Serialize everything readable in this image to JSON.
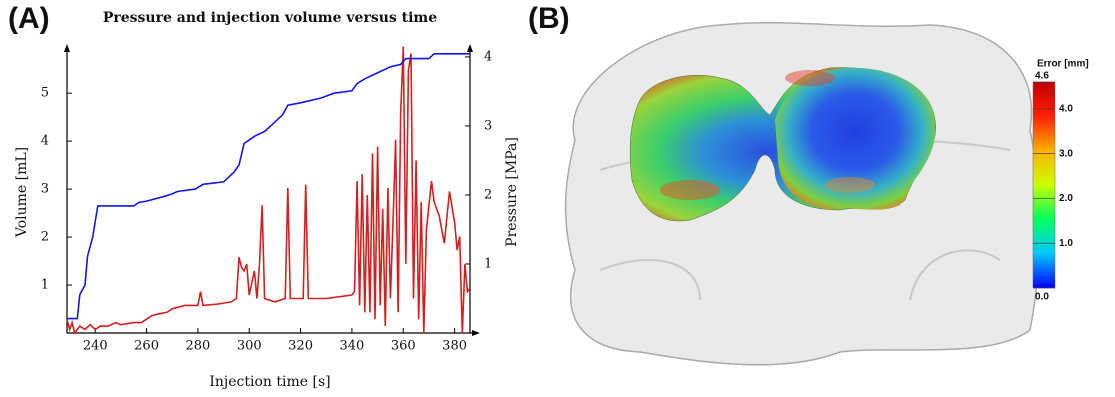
{
  "chart_data": [
    {
      "type": "line",
      "panel_label": "(A)",
      "title": "Pressure and injection volume versus time",
      "x_label": "Injection time [s]",
      "y_label": "Volume [mL]",
      "y2_label": "Pressure [MPa]",
      "xlim": [
        229,
        386
      ],
      "xticks": [
        240,
        260,
        280,
        300,
        320,
        340,
        360,
        380
      ],
      "ylim": [
        0,
        5.9
      ],
      "yticks": [
        1,
        2,
        3,
        4,
        5
      ],
      "y2lim": [
        0,
        4.1
      ],
      "y2ticks": [
        1,
        2,
        3,
        4
      ],
      "series": [
        {
          "color": "#1515f0",
          "axis": "y",
          "x": [
            229,
            233,
            234,
            236,
            237,
            239,
            241,
            255,
            257,
            260,
            267,
            270,
            272,
            279,
            282,
            290,
            294,
            296,
            298,
            302,
            306,
            309,
            313,
            315,
            320,
            328,
            333,
            340,
            342,
            345,
            349,
            351,
            353,
            355,
            359,
            361,
            370,
            372,
            386
          ],
          "values": [
            0.3,
            0.3,
            0.8,
            1.0,
            1.6,
            2.0,
            2.65,
            2.65,
            2.72,
            2.75,
            2.85,
            2.9,
            2.95,
            3.0,
            3.1,
            3.15,
            3.35,
            3.5,
            3.95,
            4.1,
            4.2,
            4.35,
            4.55,
            4.75,
            4.8,
            4.9,
            5.0,
            5.05,
            5.2,
            5.3,
            5.4,
            5.45,
            5.5,
            5.55,
            5.6,
            5.72,
            5.72,
            5.82,
            5.82
          ]
        },
        {
          "color": "#d42020",
          "axis": "y2",
          "x": [
            229,
            230,
            231,
            232,
            234,
            236,
            238,
            240,
            242,
            245,
            248,
            250,
            255,
            258,
            260,
            262,
            265,
            268,
            270,
            275,
            280,
            281,
            282,
            288,
            293,
            295,
            296,
            297,
            298,
            299,
            300,
            302,
            303,
            304,
            305,
            306,
            310,
            314,
            315,
            316,
            321,
            322,
            323,
            330,
            340,
            341,
            342,
            343,
            344,
            345,
            346,
            347,
            348,
            349,
            350,
            351,
            352,
            353,
            354,
            355,
            356,
            357,
            358,
            359,
            360,
            361,
            362,
            363,
            364,
            365,
            366,
            367,
            368,
            369,
            371,
            372,
            374,
            376,
            378,
            380,
            381,
            382,
            383,
            384,
            385,
            386
          ],
          "values": [
            0.2,
            0.05,
            0.15,
            0.0,
            0.1,
            0.05,
            0.12,
            0.05,
            0.1,
            0.1,
            0.15,
            0.12,
            0.15,
            0.15,
            0.2,
            0.25,
            0.28,
            0.3,
            0.35,
            0.4,
            0.4,
            0.6,
            0.4,
            0.42,
            0.45,
            0.5,
            1.1,
            0.95,
            0.9,
            1.0,
            0.55,
            0.9,
            0.5,
            1.0,
            1.85,
            0.5,
            0.45,
            0.5,
            2.1,
            0.5,
            0.5,
            2.15,
            0.5,
            0.5,
            0.55,
            0.6,
            2.2,
            0.4,
            2.3,
            0.3,
            2.0,
            0.3,
            2.6,
            0.2,
            2.7,
            0.4,
            1.8,
            0.1,
            2.1,
            0.5,
            1.6,
            2.8,
            0.3,
            3.2,
            4.15,
            1.0,
            3.8,
            4.05,
            0.5,
            2.5,
            0.2,
            1.9,
            0.0,
            1.5,
            2.2,
            1.9,
            1.7,
            1.3,
            2.05,
            1.6,
            1.2,
            1.4,
            0.0,
            1.0,
            0.6,
            0.65
          ]
        }
      ]
    },
    {
      "type": "colorbar",
      "panel_label": "(B)",
      "title": "Error [mm]",
      "colormap": [
        "#0000ff",
        "#00c8ff",
        "#00ff60",
        "#c8ff00",
        "#ffb000",
        "#ff2000",
        "#c00000"
      ],
      "ylim": [
        0,
        4.6
      ],
      "yticks": [
        {
          "value": 0,
          "label": "0.0"
        },
        {
          "value": 1,
          "label": "1.0"
        },
        {
          "value": 2,
          "label": "2.0"
        },
        {
          "value": 3,
          "label": "3.0"
        },
        {
          "value": 4,
          "label": "4.0"
        },
        4.6
      ]
    }
  ]
}
